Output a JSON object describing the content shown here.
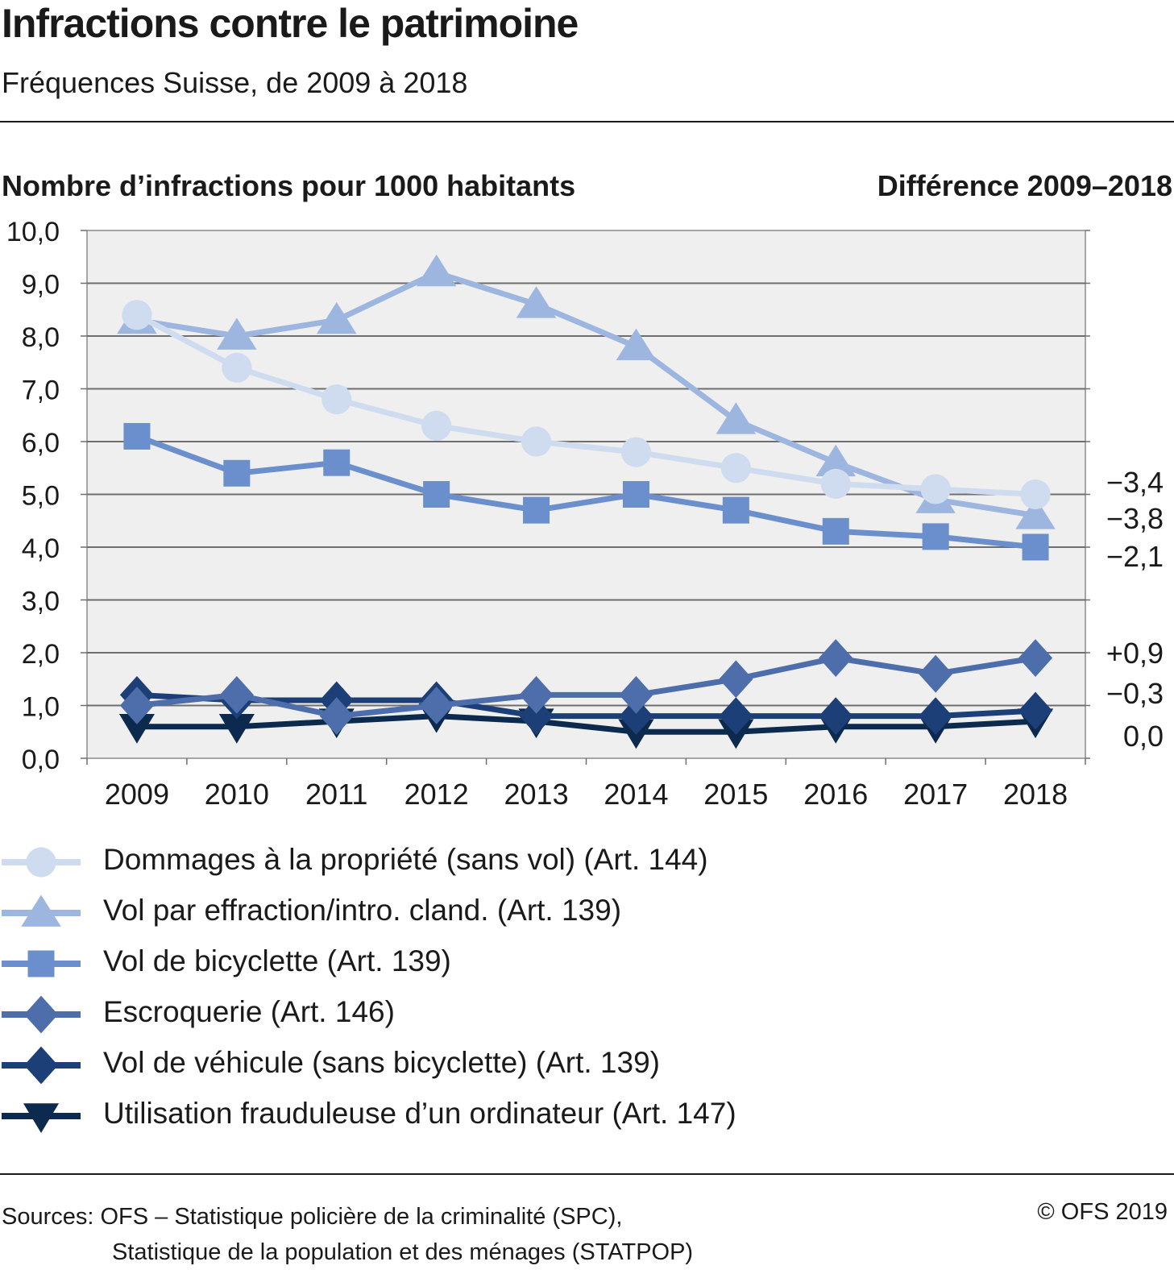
{
  "title": "Infractions contre le patrimoine",
  "subtitle": "Fréquences Suisse, de 2009 à 2018",
  "y_axis_title": "Nombre d’infractions pour 1000 habitants",
  "difference_title": "Différence 2009–2018",
  "source_line1": "Sources: OFS – Statistique policière de la criminalité (SPC),",
  "source_line2": "Statistique de la population et des ménages (STATPOP)",
  "copyright": "© OFS 2019",
  "chart_data": {
    "type": "line",
    "x": [
      "2009",
      "2010",
      "2011",
      "2012",
      "2013",
      "2014",
      "2015",
      "2016",
      "2017",
      "2018"
    ],
    "ylim": [
      0,
      10
    ],
    "yticks": [
      "0,0",
      "1,0",
      "2,0",
      "3,0",
      "4,0",
      "5,0",
      "6,0",
      "7,0",
      "8,0",
      "9,0",
      "10,0"
    ],
    "grid": true,
    "legend_position": "bottom",
    "series": [
      {
        "name": "Dommages à la propriété (sans vol) (Art. 144)",
        "color": "#cfdcef",
        "marker": "circle",
        "values": [
          8.4,
          7.4,
          6.8,
          6.3,
          6.0,
          5.8,
          5.5,
          5.2,
          5.1,
          5.0
        ],
        "difference": "−3,4"
      },
      {
        "name": "Vol par effraction/intro. cland. (Art. 139)",
        "color": "#9db6e0",
        "marker": "triangle-up",
        "values": [
          8.3,
          8.0,
          8.3,
          9.2,
          8.6,
          7.8,
          6.4,
          5.6,
          4.9,
          4.6
        ],
        "difference": "−3,8"
      },
      {
        "name": "Vol de bicyclette (Art. 139)",
        "color": "#6a8fcc",
        "marker": "square",
        "values": [
          6.1,
          5.4,
          5.6,
          5.0,
          4.7,
          5.0,
          4.7,
          4.3,
          4.2,
          4.0
        ],
        "difference": "−2,1"
      },
      {
        "name": "Escroquerie (Art. 146)",
        "color": "#4d6eab",
        "marker": "diamond",
        "values": [
          1.0,
          1.2,
          0.8,
          1.0,
          1.2,
          1.2,
          1.5,
          1.9,
          1.6,
          1.9
        ],
        "difference": "+0,9"
      },
      {
        "name": "Vol de véhicule (sans bicyclette) (Art. 139)",
        "color": "#1d3f78",
        "marker": "diamond",
        "values": [
          1.2,
          1.1,
          1.1,
          1.1,
          0.8,
          0.8,
          0.8,
          0.8,
          0.8,
          0.9
        ],
        "difference": "−0,3"
      },
      {
        "name": "Utilisation frauduleuse d’un ordinateur (Art. 147)",
        "color": "#0c2a4e",
        "marker": "triangle-down",
        "values": [
          0.6,
          0.6,
          0.7,
          0.8,
          0.7,
          0.5,
          0.5,
          0.6,
          0.6,
          0.7
        ],
        "difference": "0,0"
      }
    ]
  }
}
